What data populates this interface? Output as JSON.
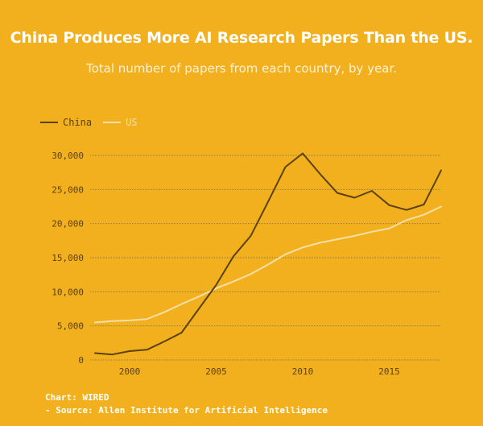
{
  "title": "China Produces More AI Research Papers Than the US.",
  "subtitle": "Total number of papers from each country, by year.",
  "footer": {
    "line1": "Chart: WIRED",
    "line2": "- Source: Allen Institute for Artificial Intelligence"
  },
  "colors": {
    "background": "#f2b01e",
    "china": "#5a4210",
    "us": "#f4dfa8",
    "grid": "#6b5318"
  },
  "chart_data": {
    "type": "line",
    "title": "China Produces More AI Research Papers Than the US.",
    "subtitle": "Total number of papers from each country, by year.",
    "xlabel": "",
    "ylabel": "",
    "xlim": [
      1998,
      2018
    ],
    "ylim": [
      0,
      30000
    ],
    "x_ticks": [
      2000,
      2005,
      2010,
      2015
    ],
    "y_ticks": [
      0,
      5000,
      10000,
      15000,
      20000,
      25000,
      30000
    ],
    "y_tick_labels": [
      "0",
      "5,000",
      "10,000",
      "15,000",
      "20,000",
      "25,000",
      "30,000"
    ],
    "grid": "horizontal",
    "legend": "top-left",
    "x": [
      1998,
      1999,
      2000,
      2001,
      2002,
      2003,
      2004,
      2005,
      2006,
      2007,
      2008,
      2009,
      2010,
      2011,
      2012,
      2013,
      2014,
      2015,
      2016,
      2017,
      2018
    ],
    "series": [
      {
        "name": "China",
        "color": "#5a4210",
        "values": [
          1000,
          800,
          1300,
          1500,
          2700,
          4000,
          7500,
          11000,
          15200,
          18200,
          23200,
          28300,
          30300,
          27300,
          24500,
          23800,
          24800,
          22700,
          22000,
          22800,
          27800
        ]
      },
      {
        "name": "US",
        "color": "#f4dfa8",
        "values": [
          5500,
          5700,
          5800,
          6000,
          7000,
          8200,
          9300,
          10500,
          11500,
          12600,
          14000,
          15500,
          16500,
          17200,
          17700,
          18200,
          18800,
          19300,
          20500,
          21300,
          22500
        ]
      }
    ]
  }
}
